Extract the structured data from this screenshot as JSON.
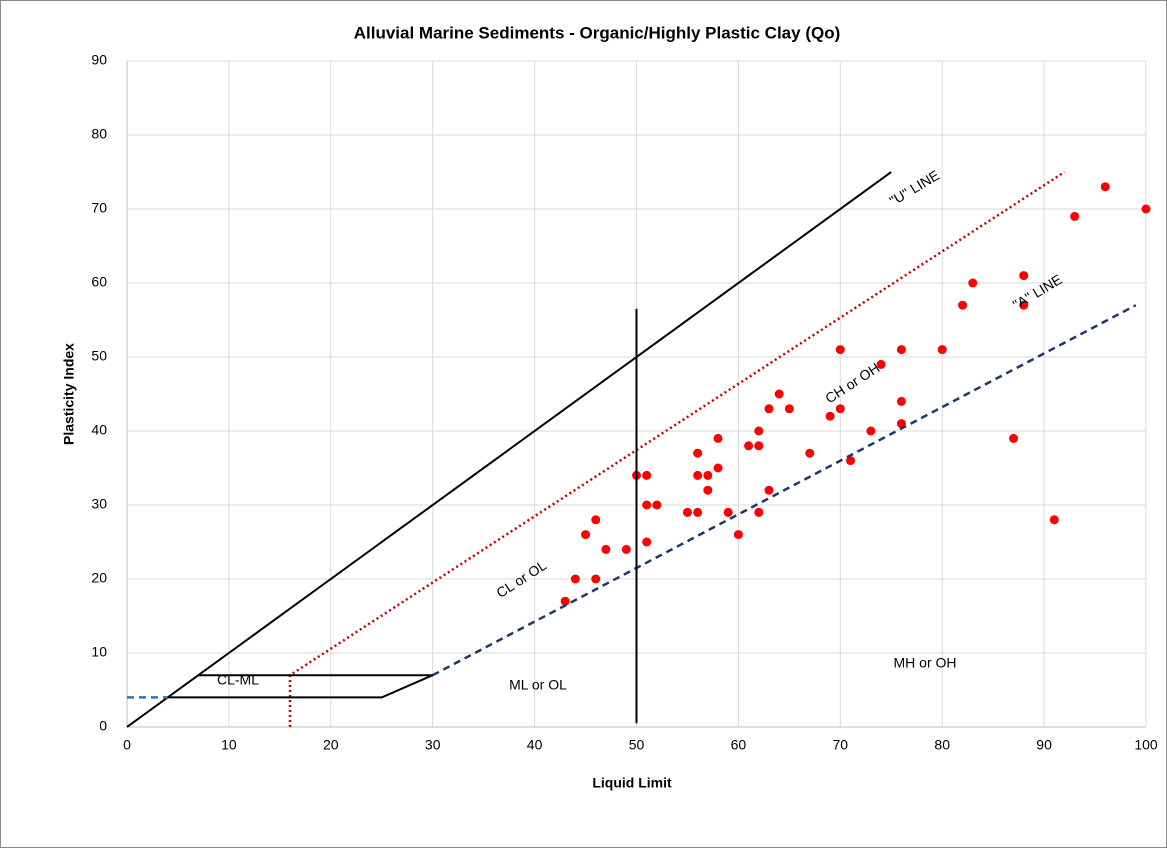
{
  "chart_data": {
    "type": "scatter",
    "title": "Alluvial Marine Sediments - Organic/Highly Plastic Clay (Qo)",
    "x_label": "Liquid Limit",
    "y_label": "Plasticity Index",
    "xlim": [
      0,
      100
    ],
    "ylim": [
      0,
      90
    ],
    "xticks": [
      0,
      10,
      20,
      30,
      40,
      50,
      60,
      70,
      80,
      90,
      100
    ],
    "yticks": [
      0,
      10,
      20,
      30,
      40,
      50,
      60,
      70,
      80,
      90
    ],
    "grid": true,
    "series": [
      {
        "mode": "markers",
        "color": "#ff0000",
        "x": [
          43,
          44,
          45,
          46,
          46,
          47,
          49,
          50,
          51,
          51,
          51,
          52,
          55,
          56,
          56,
          56,
          57,
          57,
          58,
          58,
          59,
          60,
          61,
          62,
          62,
          62,
          63,
          63,
          64,
          65,
          67,
          69,
          70,
          70,
          71,
          73,
          74,
          76,
          76,
          76,
          80,
          82,
          83,
          87,
          88,
          88,
          91,
          93,
          96,
          100
        ],
        "values": [
          17,
          20,
          26,
          28,
          20,
          24,
          24,
          34,
          34,
          30,
          25,
          30,
          29,
          37,
          34,
          29,
          34,
          32,
          39,
          35,
          29,
          26,
          38,
          40,
          38,
          29,
          43,
          32,
          45,
          43,
          37,
          42,
          51,
          43,
          36,
          40,
          49,
          51,
          44,
          41,
          51,
          57,
          60,
          39,
          61,
          57,
          28,
          69,
          73,
          70
        ]
      },
      {
        "mode": "lines",
        "dash": "solid",
        "color": "#000000",
        "x": [
          0,
          75
        ],
        "values": [
          0,
          75
        ]
      },
      {
        "mode": "lines",
        "dash": "dotted",
        "color": "#c00000",
        "x": [
          16,
          16,
          92
        ],
        "values": [
          0,
          7,
          75
        ]
      },
      {
        "mode": "lines",
        "dash": "dashed",
        "color": "#1f3864",
        "x": [
          30,
          99
        ],
        "values": [
          7,
          57
        ]
      },
      {
        "mode": "lines",
        "dash": "dashed",
        "color": "#2e75b6",
        "x": [
          0,
          4
        ],
        "values": [
          4,
          4
        ]
      },
      {
        "mode": "lines",
        "dash": "solid",
        "color": "#000000",
        "x": [
          50,
          50
        ],
        "values": [
          0.5,
          56.5
        ]
      },
      {
        "mode": "lines",
        "dash": "solid",
        "color": "#000000",
        "x": [
          7,
          30,
          25,
          4
        ],
        "values": [
          7,
          7,
          4,
          4
        ]
      }
    ],
    "annotations": [
      "\"U\" LINE",
      "\"A\" LINE",
      "CH or OH",
      "CL or OL",
      "CL-ML",
      "ML or OL",
      "MH or OH"
    ]
  }
}
